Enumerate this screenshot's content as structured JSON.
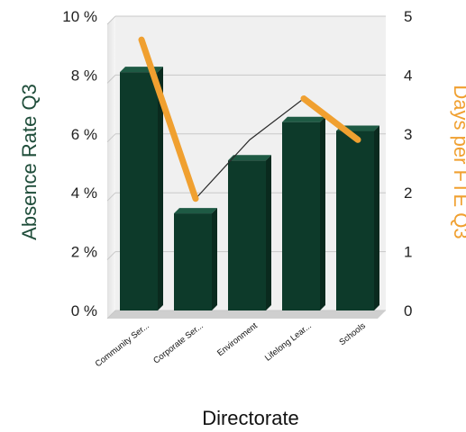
{
  "chart_data": {
    "type": "bar",
    "categories": [
      "Community Ser...",
      "Corporate Ser...",
      "Environment",
      "Lifelong Lear...",
      "Schools"
    ],
    "series": [
      {
        "name": "Absence Rate Q3",
        "axis": "left",
        "kind": "bar",
        "values": [
          8.1,
          3.3,
          5.1,
          6.4,
          6.1
        ]
      },
      {
        "name": "Days per FTE Q3",
        "axis": "right",
        "kind": "line",
        "values": [
          4.6,
          1.9,
          2.9,
          3.6,
          2.9
        ]
      }
    ],
    "xlabel": "Directorate",
    "ylabel": "Absence Rate Q3",
    "y2label": "Days per FTE Q3",
    "ylim": [
      0,
      10
    ],
    "y2lim": [
      0,
      5
    ],
    "yticks": [
      "0 %",
      "2 %",
      "4 %",
      "6 %",
      "8 %",
      "10 %"
    ],
    "y2ticks": [
      "0",
      "1",
      "2",
      "3",
      "4",
      "5"
    ],
    "grid": true,
    "colors": {
      "bar": "#0d3a2a",
      "bar_top": "#1e5a44",
      "line": "#f0a030",
      "left_title": "#1f4d3a",
      "right_title": "#f0a030",
      "wall": "#f0f0f0",
      "grid": "#c8c8c8"
    }
  }
}
